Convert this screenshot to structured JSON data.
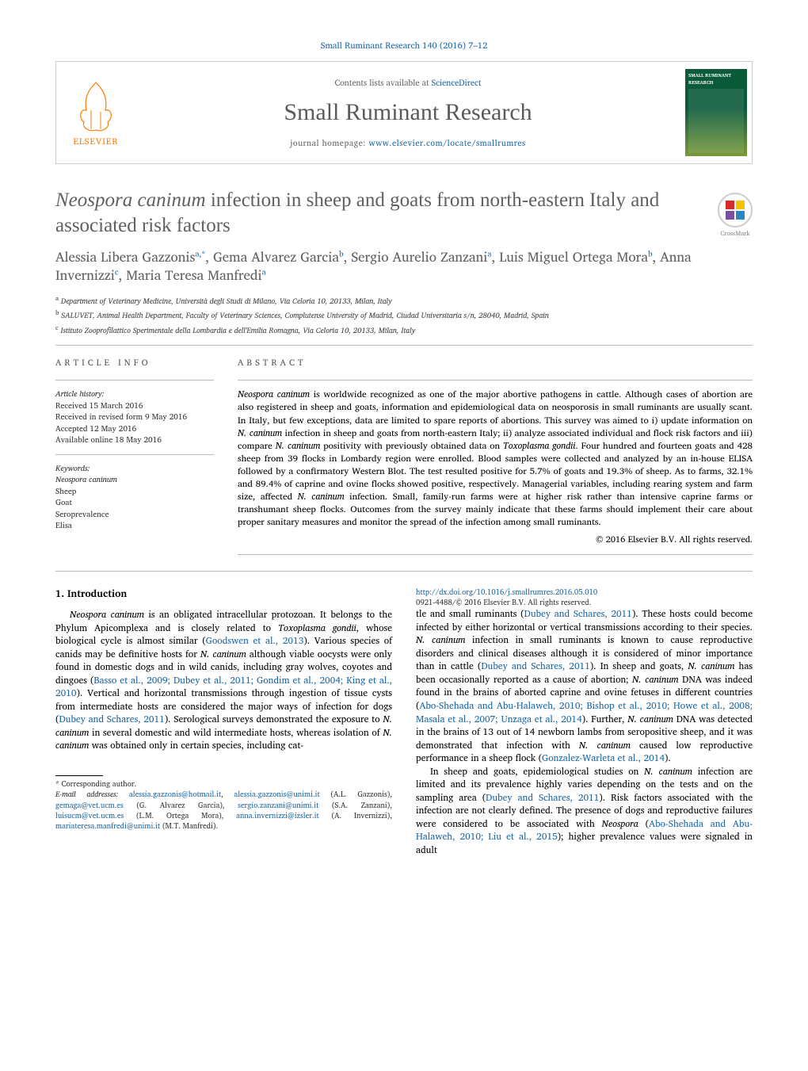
{
  "journal": {
    "top_ref": "Small Ruminant Research 140 (2016) 7–12",
    "contents_line_prefix": "Contents lists available at ",
    "contents_link_text": "ScienceDirect",
    "title": "Small Ruminant Research",
    "homepage_prefix": "journal homepage: ",
    "homepage_url": "www.elsevier.com/locate/smallrumres",
    "elsevier_label": "ELSEVIER",
    "cover_label_top": "SMALL RUMINANT",
    "cover_label_bottom": "RESEARCH"
  },
  "crossmark": {
    "label": "CrossMark"
  },
  "paper": {
    "title_prefix_italic": "Neospora caninum",
    "title_rest": " infection in sheep and goats from north-eastern Italy and associated risk factors",
    "authors_html": "Alessia Libera Gazzonis<sup>a,*</sup>, Gema Alvarez Garcia<sup>b</sup>, Sergio Aurelio Zanzani<sup>a</sup>, Luis Miguel Ortega Mora<sup>b</sup>, Anna Invernizzi<sup>c</sup>, Maria Teresa Manfredi<sup>a</sup>",
    "affiliations": [
      "a Department of Veterinary Medicine, Università degli Studi di Milano, Via Celoria 10, 20133, Milan, Italy",
      "b SALUVET, Animal Health Department, Faculty of Veterinary Sciences, Complutense University of Madrid, Ciudad Universitaria s/n, 28040, Madrid, Spain",
      "c Istituto Zooprofilattico Sperimentale della Lombardia e dell'Emilia Romagna, Via Celoria 10, 20133, Milan, Italy"
    ]
  },
  "article_info": {
    "head": "ARTICLE INFO",
    "history_title": "Article history:",
    "history": [
      "Received 15 March 2016",
      "Received in revised form 9 May 2016",
      "Accepted 12 May 2016",
      "Available online 18 May 2016"
    ],
    "keywords_title": "Keywords:",
    "keywords": [
      "Neospora caninum",
      "Sheep",
      "Goat",
      "Seroprevalence",
      "Elisa"
    ]
  },
  "abstract": {
    "head": "ABSTRACT",
    "text": "Neospora caninum is worldwide recognized as one of the major abortive pathogens in cattle. Although cases of abortion are also registered in sheep and goats, information and epidemiological data on neosporosis in small ruminants are usually scant. In Italy, but few exceptions, data are limited to spare reports of abortions. This survey was aimed to i) update information on N. caninum infection in sheep and goats from north-eastern Italy; ii) analyze associated individual and flock risk factors and iii) compare N. caninum positivity with previously obtained data on Toxoplasma gondii. Four hundred and fourteen goats and 428 sheep from 39 flocks in Lombardy region were enrolled. Blood samples were collected and analyzed by an in-house ELISA followed by a confirmatory Western Blot. The test resulted positive for 5.7% of goats and 19.3% of sheep. As to farms, 32.1% and 89.4% of caprine and ovine flocks showed positive, respectively. Managerial variables, including rearing system and farm size, affected N. caninum infection. Small, family-run farms were at higher risk rather than intensive caprine farms or transhumant sheep flocks. Outcomes from the survey mainly indicate that these farms should implement their care about proper sanitary measures and monitor the spread of the infection among small ruminants.",
    "copyright": "© 2016 Elsevier B.V. All rights reserved."
  },
  "body": {
    "section_heading": "1. Introduction",
    "p1_html": "<em>Neospora caninum</em> is an obligated intracellular protozoan. It belongs to the Phylum Apicomplexa and is closely related to <em>Toxoplasma gondii</em>, whose biological cycle is almost similar (<a href='#'>Goodswen et al., 2013</a>). Various species of canids may be definitive hosts for <em>N. caninum</em> although viable oocysts were only found in domestic dogs and in wild canids, including gray wolves, coyotes and dingoes (<a href='#'>Basso et al., 2009; Dubey et al., 2011; Gondim et al., 2004; King et al., 2010</a>). Vertical and horizontal transmissions through ingestion of tissue cysts from intermediate hosts are considered the major ways of infection for dogs (<a href='#'>Dubey and Schares, 2011</a>). Serological surveys demonstrated the exposure to <em>N. caninum</em> in several domestic and wild intermediate hosts, whereas isolation of <em>N. caninum</em> was obtained only in certain species, including cat-",
    "p2_html": "tle and small ruminants (<a href='#'>Dubey and Schares, 2011</a>). These hosts could become infected by either horizontal or vertical transmissions according to their species. <em>N. caninum</em> infection in small ruminants is known to cause reproductive disorders and clinical diseases although it is considered of minor importance than in cattle (<a href='#'>Dubey and Schares, 2011</a>). In sheep and goats, <em>N. caninum</em> has been occasionally reported as a cause of abortion; <em>N. caninum</em> DNA was indeed found in the brains of aborted caprine and ovine fetuses in different countries (<a href='#'>Abo-Shehada and Abu-Halaweh, 2010; Bishop et al., 2010; Howe et al., 2008; Masala et al., 2007; Unzaga et al., 2014</a>). Further, <em>N. caninum</em> DNA was detected in the brains of 13 out of 14 newborn lambs from seropositive sheep, and it was demonstrated that infection with <em>N. caninum</em> caused low reproductive performance in a sheep flock (<a href='#'>Gonzalez-Warleta et al., 2014</a>).",
    "p3_html": "In sheep and goats, epidemiological studies on <em>N. caninum</em> infection are limited and its prevalence highly varies depending on the tests and on the sampling area (<a href='#'>Dubey and Schares, 2011</a>). Risk factors associated with the infection are not clearly defined. The presence of dogs and reproductive failures were considered to be associated with <em>Neospora</em> (<a href='#'>Abo-Shehada and Abu-Halaweh, 2010; Liu et al., 2015</a>); higher prevalence values were signaled in adult"
  },
  "footnotes": {
    "corresponding": "* Corresponding author.",
    "emails_label": "E-mail addresses:",
    "emails_html": "<a href='#'>alessia.gazzonis@hotmail.it</a>, <a href='#'>alessia.gazzonis@unimi.it</a> (A.L. Gazzonis), <a href='#'>gemaga@vet.ucm.es</a> (G. Alvarez Garcia), <a href='#'>sergio.zanzani@unimi.it</a> (S.A. Zanzani), <a href='#'>luisucm@vet.ucm.es</a> (L.M. Ortega Mora), <a href='#'>anna.invernizzi@izsler.it</a> (A. Invernizzi), <a href='#'>mariateresa.manfredi@unimi.it</a> (M.T. Manfredi)."
  },
  "doi": {
    "url": "http://dx.doi.org/10.1016/j.smallrumres.2016.05.010",
    "issn_line": "0921-4488/© 2016 Elsevier B.V. All rights reserved."
  },
  "colors": {
    "link": "#1b67a6",
    "heading_gray": "#606060",
    "rule": "#bbbbbb",
    "elsevier_orange": "#ff7a00",
    "cover_green": "#0b5a3a"
  }
}
